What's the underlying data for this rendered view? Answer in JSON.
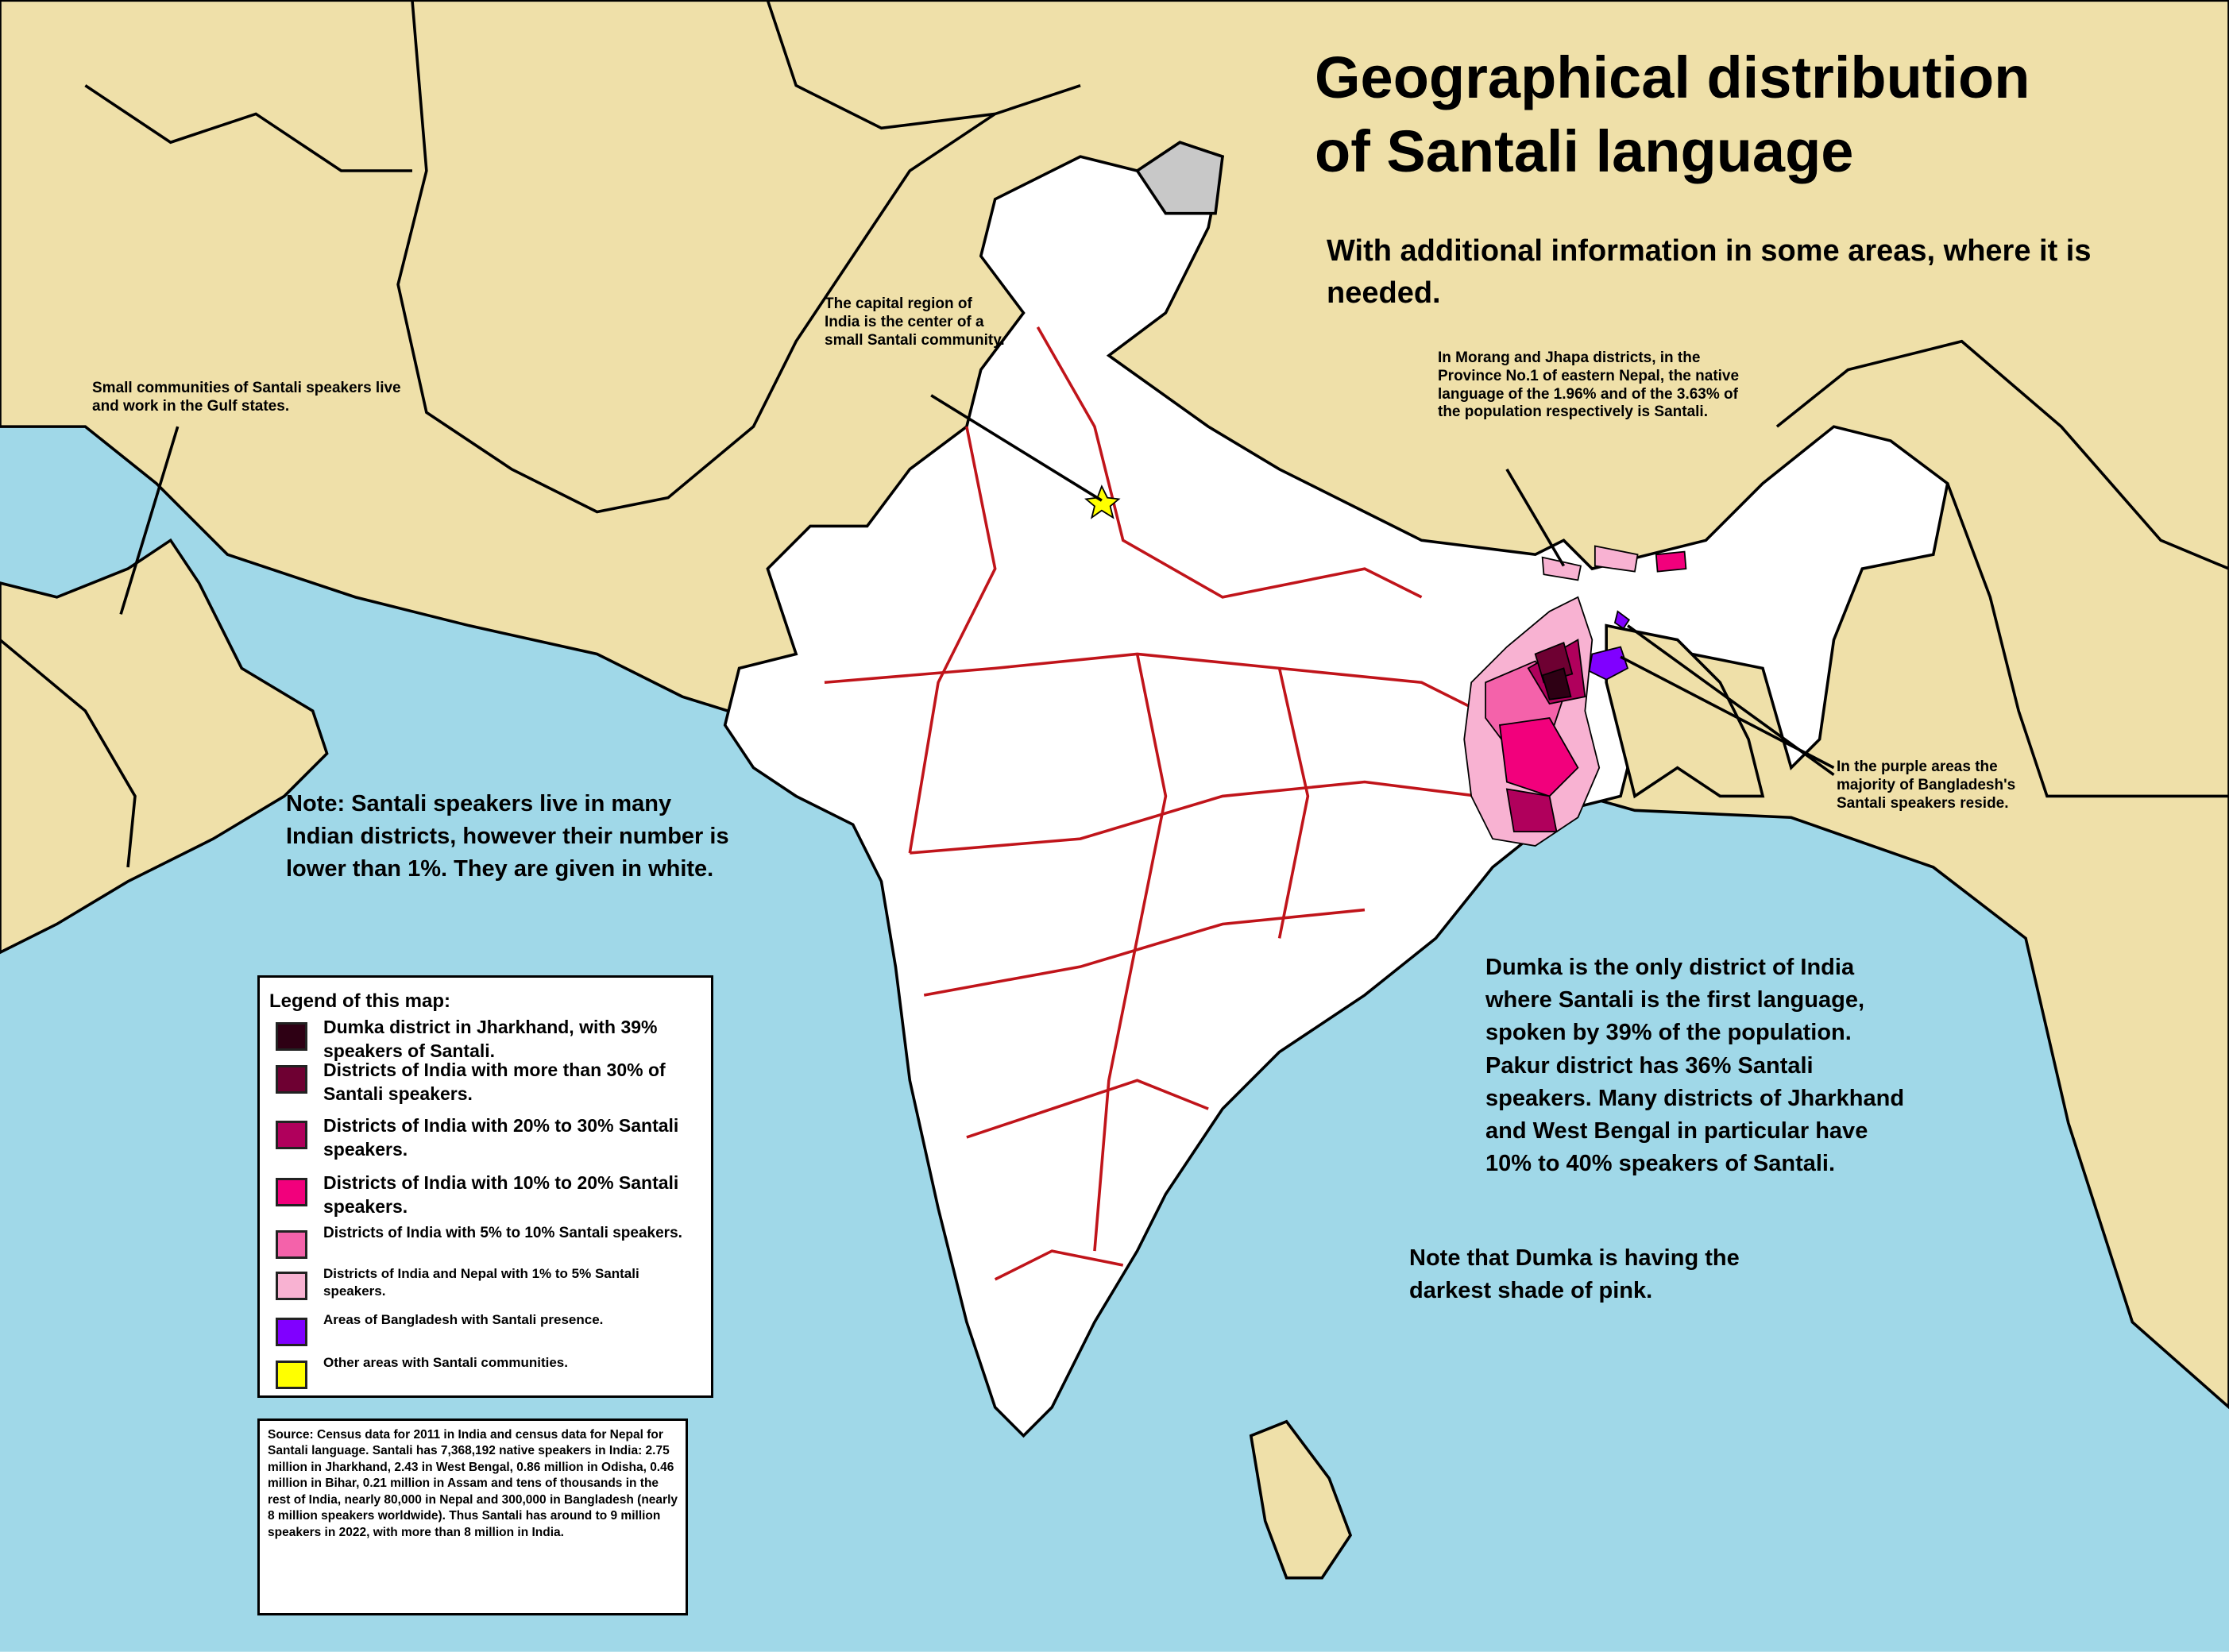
{
  "title": [
    "Geographical distribution",
    "of Santali language"
  ],
  "subtitle": "With additional information in some areas, where it is needed.",
  "annotations": {
    "gulf": "Small communities of Santali speakers live and work in the Gulf states.",
    "capital": "The capital region of India is the center of a small Santali community.",
    "nepal": "In Morang and Jhapa districts, in the Province No.1 of eastern Nepal, the native language of the 1.96% and of the 3.63% of the population respectively is Santali.",
    "bangladesh": "In the purple areas the majority of Bangladesh's Santali speakers reside.",
    "white_note": "Note: Santali speakers live in many Indian districts, however their number is lower than 1%. They are given in white.",
    "dumka_note": "Dumka is the only district of India where Santali is the first language, spoken by 39% of the population. Pakur district has 36% Santali speakers. Many districts of Jharkhand and West Bengal in particular have 10% to 40% speakers of Santali.",
    "shade_note": "Note that Dumka is having the darkest shade of pink."
  },
  "legend": {
    "title": "Legend of this map:",
    "items": [
      {
        "label": "Dumka district in Jharkhand, with 39% speakers of Santali.",
        "color": "#2e0014"
      },
      {
        "label": "Districts of India with more than 30% of Santali speakers.",
        "color": "#6e0032"
      },
      {
        "label": "Districts of India with 20% to 30% Santali speakers.",
        "color": "#b0005c"
      },
      {
        "label": "Districts of India with 10% to 20% Santali speakers.",
        "color": "#f2007c"
      },
      {
        "label": "Districts of India with 5% to 10% Santali speakers.",
        "color": "#f462aa"
      },
      {
        "label": "Districts of India and Nepal with 1% to 5% Santali speakers.",
        "color": "#f8b2d2"
      },
      {
        "label": "Areas of Bangladesh with Santali presence.",
        "color": "#8000ff"
      },
      {
        "label": "Other areas with Santali communities.",
        "color": "#ffff00"
      }
    ]
  },
  "source": "Source: Census data for 2011 in India and census data for Nepal for Santali language. Santali has 7,368,192 native speakers in India: 2.75 million in Jharkhand, 2.43 in West Bengal, 0.86 million in Odisha, 0.46 million in Bihar, 0.21 million in Assam and tens of thousands in the rest of India, nearly 80,000 in Nepal and 300,000 in Bangladesh (nearly 8 million speakers worldwide). Thus Santali has around to 9 million speakers in 2022, with more than 8 million in India."
}
